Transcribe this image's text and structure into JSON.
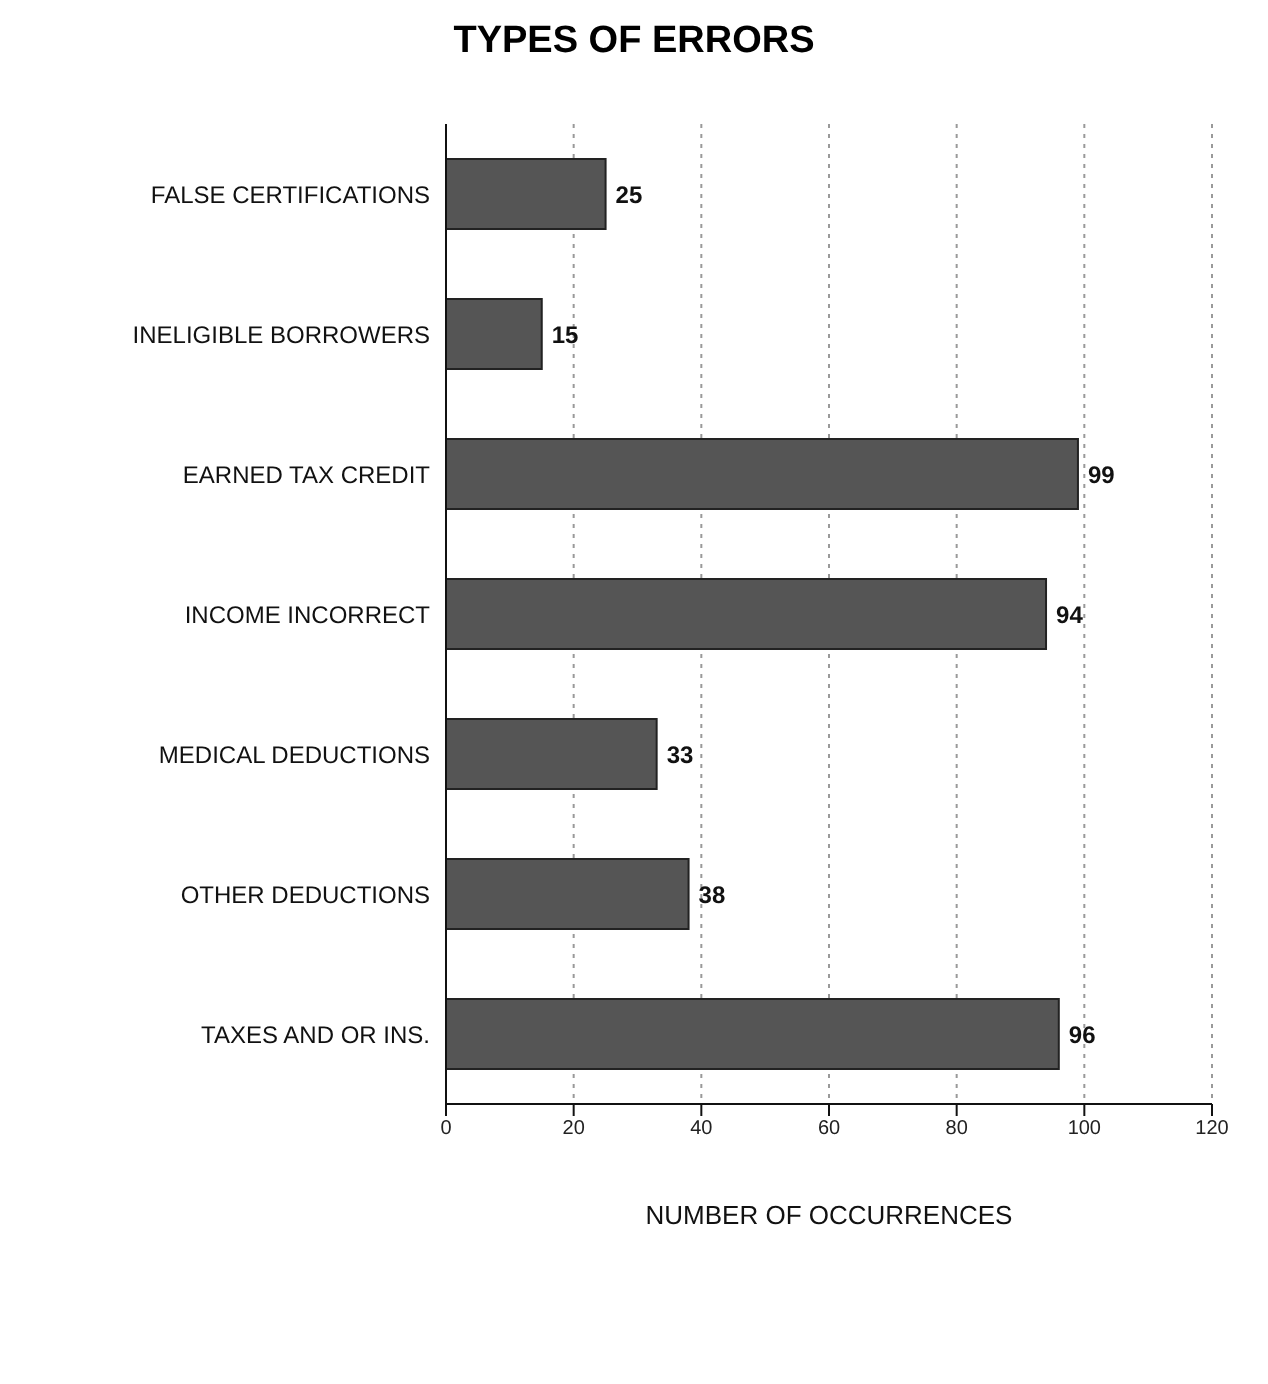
{
  "chart_data": {
    "type": "bar",
    "orientation": "horizontal",
    "title": "TYPES OF ERRORS",
    "xlabel": "NUMBER OF OCCURRENCES",
    "categories": [
      "FALSE CERTIFICATIONS",
      "INELIGIBLE BORROWERS",
      "EARNED TAX CREDIT",
      "INCOME INCORRECT",
      "MEDICAL DEDUCTIONS",
      "OTHER DEDUCTIONS",
      "TAXES AND OR INS."
    ],
    "values": [
      25,
      15,
      99,
      94,
      33,
      38,
      96
    ],
    "color": "#555555",
    "xlim": [
      0,
      120
    ],
    "xticks": [
      0,
      20,
      40,
      60,
      80,
      100,
      120
    ],
    "grid": "x",
    "data_labels": true
  }
}
